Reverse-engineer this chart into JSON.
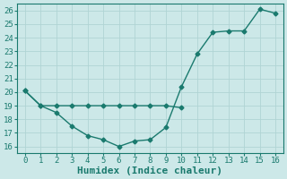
{
  "line1_x": [
    0,
    1,
    2,
    3,
    4,
    5,
    6,
    7,
    8,
    9,
    10
  ],
  "line1_y": [
    20.1,
    19.0,
    19.0,
    19.0,
    19.0,
    19.0,
    19.0,
    19.0,
    19.0,
    19.0,
    18.85
  ],
  "line2_x": [
    0,
    1,
    2,
    3,
    4,
    5,
    6,
    7,
    8,
    9,
    10,
    11,
    12,
    13,
    14,
    15,
    16
  ],
  "line2_y": [
    20.1,
    19.0,
    18.5,
    17.5,
    16.8,
    16.5,
    16.0,
    16.4,
    16.5,
    17.4,
    20.4,
    22.8,
    24.4,
    24.5,
    24.5,
    26.1,
    25.8
  ],
  "line_color": "#1a7a6e",
  "bg_color": "#cce8e8",
  "grid_color": "#b0d4d4",
  "xlabel": "Humidex (Indice chaleur)",
  "xlim": [
    -0.5,
    16.5
  ],
  "ylim": [
    15.5,
    26.5
  ],
  "xticks": [
    0,
    1,
    2,
    3,
    4,
    5,
    6,
    7,
    8,
    9,
    10,
    11,
    12,
    13,
    14,
    15,
    16
  ],
  "yticks": [
    16,
    17,
    18,
    19,
    20,
    21,
    22,
    23,
    24,
    25,
    26
  ],
  "marker_size": 2.5,
  "line_width": 1.0,
  "xlabel_fontsize": 8,
  "tick_fontsize": 6.5,
  "figsize": [
    3.2,
    2.0
  ],
  "dpi": 100
}
